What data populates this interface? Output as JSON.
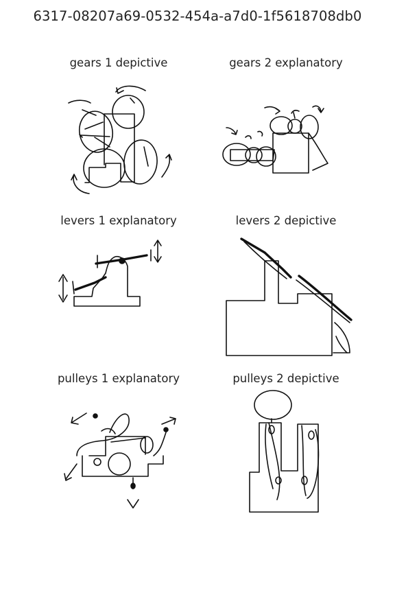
{
  "page_title": "6317-08207a69-0532-454a-a7d0-1f5618708db0",
  "sketches": [
    {
      "caption": "gears 1 depictive"
    },
    {
      "caption": "gears 2 explanatory"
    },
    {
      "caption": "levers 1 explanatory"
    },
    {
      "caption": "levers 2 depictive"
    },
    {
      "caption": "pulleys 1 explanatory"
    },
    {
      "caption": "pulleys 2 depictive"
    }
  ]
}
